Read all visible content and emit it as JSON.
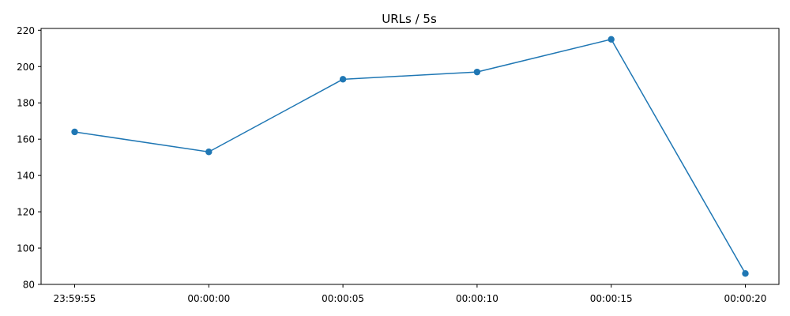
{
  "chart_data": {
    "type": "line",
    "title": "URLs / 5s",
    "xlabel": "",
    "ylabel": "",
    "x": [
      "23:59:55",
      "00:00:00",
      "00:00:05",
      "00:00:10",
      "00:00:15",
      "00:00:20"
    ],
    "series": [
      {
        "values": [
          164,
          153,
          193,
          197,
          215,
          86
        ],
        "color": "#1f77b4",
        "marker": "circle"
      }
    ],
    "x_ticks": [
      "23:59:55",
      "00:00:00",
      "00:00:05",
      "00:00:10",
      "00:00:15",
      "00:00:20"
    ],
    "y_ticks": [
      80,
      100,
      120,
      140,
      160,
      180,
      200,
      220
    ],
    "ylim": [
      80,
      221
    ],
    "grid": false,
    "legend": "none"
  }
}
